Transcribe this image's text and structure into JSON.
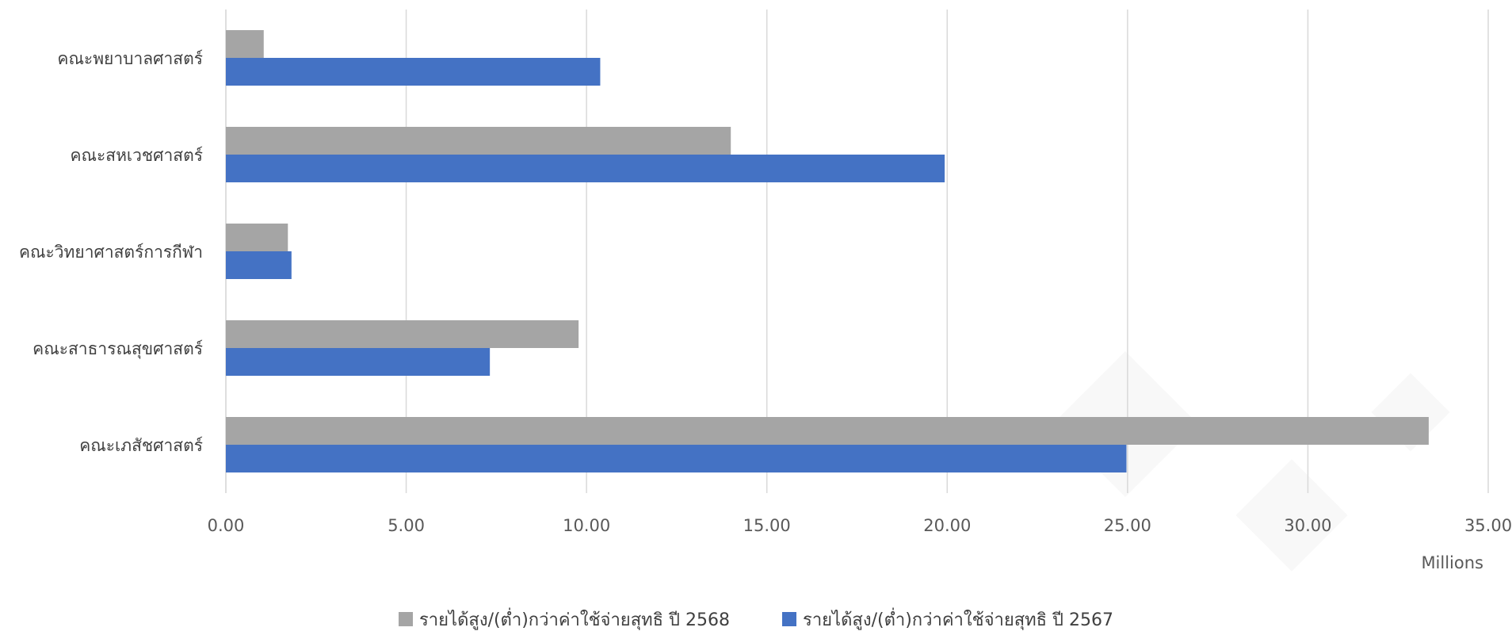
{
  "chart_data": {
    "type": "bar",
    "orientation": "horizontal",
    "categories": [
      "คณะพยาบาลศาสตร์",
      "คณะสหเวชศาสตร์",
      "คณะวิทยาศาสตร์การกีฬา",
      "คณะสาธารณสุขศาสตร์",
      "คณะเภสัชศาสตร์"
    ],
    "series": [
      {
        "name": "รายได้สูง/(ต่ำ)กว่าค่าใช้จ่ายสุทธิ ปี 2568",
        "color": "#a5a5a5",
        "values": [
          1.05,
          14.0,
          1.72,
          9.78,
          33.35
        ]
      },
      {
        "name": "รายได้สูง/(ต่ำ)กว่าค่าใช้จ่ายสุทธิ ปี 2567",
        "color": "#4472c4",
        "values": [
          10.38,
          19.93,
          1.82,
          7.32,
          24.97
        ]
      }
    ],
    "xlim": [
      0,
      35
    ],
    "xticks": [
      "0.00",
      "5.00",
      "10.00",
      "15.00",
      "20.00",
      "25.00",
      "30.00",
      "35.00"
    ],
    "x_unit_label": "Millions",
    "grid": "vertical",
    "legend": "bottom"
  }
}
